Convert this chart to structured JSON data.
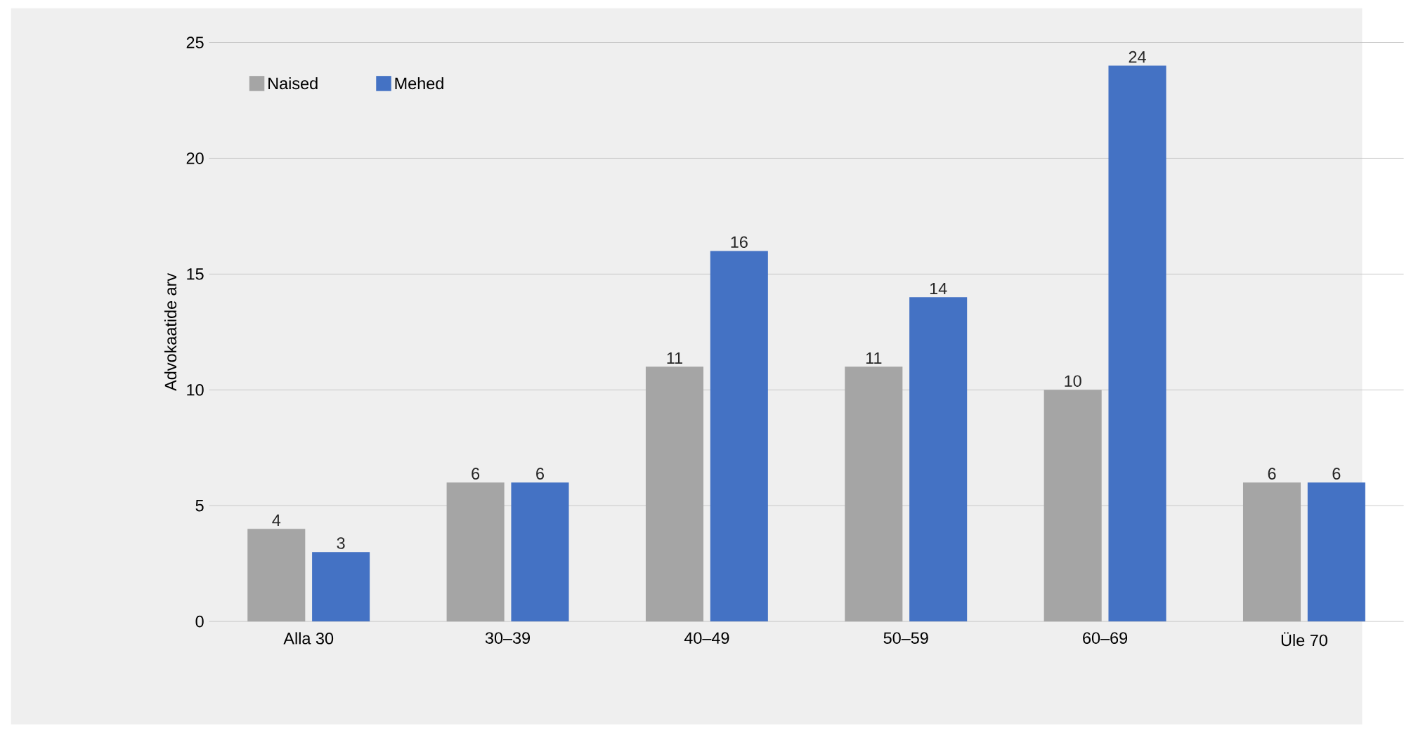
{
  "chart_data": {
    "type": "bar",
    "ylabel": "Advokaatide arv",
    "categories": [
      "Alla 30",
      "30–39",
      "40–49",
      "50–59",
      "60–69",
      "Üle 70"
    ],
    "series": [
      {
        "name": "Naised",
        "color": "#a5a5a5",
        "values": [
          4,
          6,
          11,
          11,
          10,
          6
        ]
      },
      {
        "name": "Mehed",
        "color": "#4472c4",
        "values": [
          3,
          6,
          16,
          14,
          24,
          6
        ]
      }
    ],
    "ylim": [
      0,
      25
    ],
    "yticks": [
      0,
      5,
      10,
      15,
      20,
      25
    ],
    "grid": "y",
    "legend": "top left",
    "data_labels": true
  }
}
